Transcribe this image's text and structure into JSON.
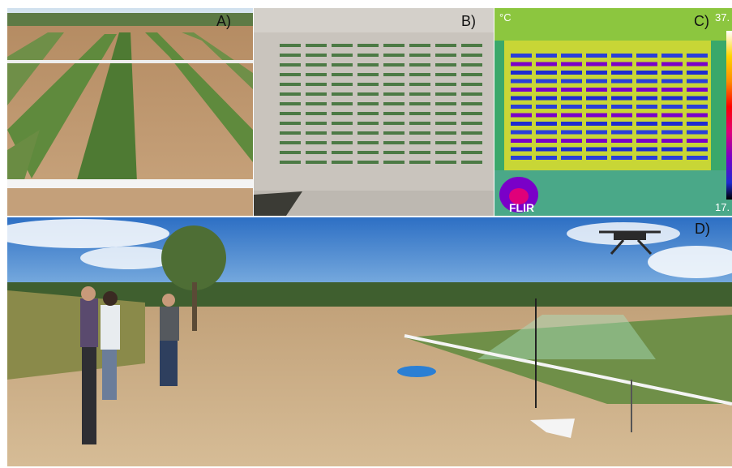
{
  "panels": {
    "a": {
      "label": "A)"
    },
    "b": {
      "label": "B)"
    },
    "c": {
      "label": "C)",
      "unit": "°C",
      "scale_max": "37.",
      "scale_min": "17.",
      "brand": "FLIR",
      "palette": [
        "#ffffff",
        "#ffd400",
        "#ff8c00",
        "#ff0000",
        "#e0007a",
        "#7a00c8",
        "#1e2bd0",
        "#000000"
      ]
    },
    "d": {
      "label": "D)"
    }
  }
}
